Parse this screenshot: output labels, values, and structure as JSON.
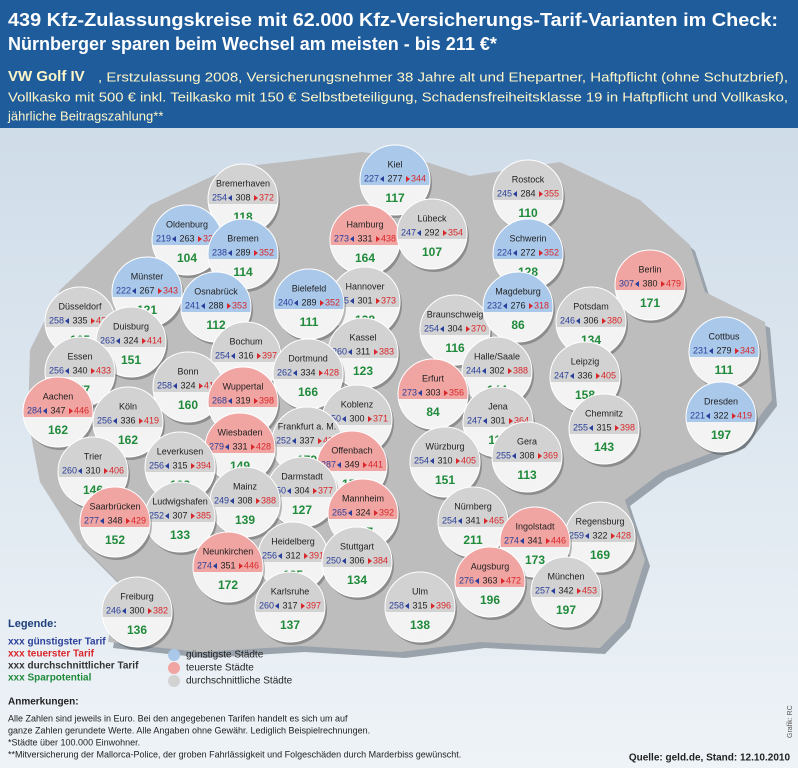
{
  "header": {
    "title_lines": [
      "439 Kfz-Zulassungskreise mit 62.000 Kfz-Versicherungs-Tarif-Varianten im Check:",
      "Nürnberger sparen beim Wechsel am meisten - bis 211 €*"
    ],
    "subtitle_lead": "VW Golf IV",
    "subtitle_lines": [
      ", Erstzulassung 2008, Versicherungsnehmer 38 Jahre alt und Ehepartner, Haftpflicht (ohne Schutzbrief),",
      "Vollkasko mit 500 € inkl. Teilkasko mit 150 € Selbstbeteiligung, Schadensfreiheitsklasse 19 in Haftpflicht und Vollkasko,",
      "jährliche Beitragszahlung**"
    ]
  },
  "cities": [
    {
      "name": "Kiel",
      "min": 227,
      "avg": 277,
      "max": 344,
      "saving": 117,
      "color": "#a9c8ea"
    },
    {
      "name": "Bremerhaven",
      "min": 254,
      "avg": 308,
      "max": 372,
      "saving": 118,
      "color": "#d2d2d2"
    },
    {
      "name": "Rostock",
      "min": 245,
      "avg": 284,
      "max": 355,
      "saving": 110,
      "color": "#d2d2d2"
    },
    {
      "name": "Oldenburg",
      "min": 219,
      "avg": 263,
      "max": 322,
      "saving": 104,
      "color": "#a9c8ea"
    },
    {
      "name": "Hamburg",
      "min": 273,
      "avg": 331,
      "max": 438,
      "saving": 164,
      "color": "#f0a5a2"
    },
    {
      "name": "Lübeck",
      "min": 247,
      "avg": 292,
      "max": 354,
      "saving": 107,
      "color": "#d2d2d2"
    },
    {
      "name": "Bremen",
      "min": 238,
      "avg": 289,
      "max": 352,
      "saving": 114,
      "color": "#a9c8ea"
    },
    {
      "name": "Schwerin",
      "min": 224,
      "avg": 272,
      "max": 352,
      "saving": 128,
      "color": "#a9c8ea"
    },
    {
      "name": "Münster",
      "min": 222,
      "avg": 267,
      "max": 343,
      "saving": 121,
      "color": "#a9c8ea"
    },
    {
      "name": "Hannover",
      "min": 245,
      "avg": 301,
      "max": 373,
      "saving": 128,
      "color": "#d2d2d2"
    },
    {
      "name": "Berlin",
      "min": 307,
      "avg": 380,
      "max": 479,
      "saving": 171,
      "color": "#f0a5a2"
    },
    {
      "name": "Osnabrück",
      "min": 241,
      "avg": 288,
      "max": 353,
      "saving": 112,
      "color": "#a9c8ea"
    },
    {
      "name": "Bielefeld",
      "min": 240,
      "avg": 289,
      "max": 352,
      "saving": 111,
      "color": "#a9c8ea"
    },
    {
      "name": "Düsseldorf",
      "min": 258,
      "avg": 335,
      "max": 423,
      "saving": 165,
      "color": "#d2d2d2"
    },
    {
      "name": "Braunschweig",
      "min": 254,
      "avg": 304,
      "max": 370,
      "saving": 116,
      "color": "#d2d2d2"
    },
    {
      "name": "Magdeburg",
      "min": 232,
      "avg": 276,
      "max": 318,
      "saving": 86,
      "color": "#a9c8ea"
    },
    {
      "name": "Potsdam",
      "min": 246,
      "avg": 306,
      "max": 380,
      "saving": 134,
      "color": "#d2d2d2"
    },
    {
      "name": "Duisburg",
      "min": 263,
      "avg": 324,
      "max": 414,
      "saving": 151,
      "color": "#d2d2d2"
    },
    {
      "name": "Cottbus",
      "min": 231,
      "avg": 279,
      "max": 343,
      "saving": 111,
      "color": "#a9c8ea"
    },
    {
      "name": "Bochum",
      "min": 254,
      "avg": 316,
      "max": 397,
      "saving": 143,
      "color": "#d2d2d2"
    },
    {
      "name": "Kassel",
      "min": 260,
      "avg": 311,
      "max": 383,
      "saving": 123,
      "color": "#d2d2d2"
    },
    {
      "name": "Dortmund",
      "min": 262,
      "avg": 334,
      "max": 428,
      "saving": 166,
      "color": "#d2d2d2"
    },
    {
      "name": "Essen",
      "min": 256,
      "avg": 340,
      "max": 433,
      "saving": 177,
      "color": "#d2d2d2"
    },
    {
      "name": "Bonn",
      "min": 258,
      "avg": 324,
      "max": 418,
      "saving": 160,
      "color": "#d2d2d2"
    },
    {
      "name": "Halle/Saale",
      "min": 244,
      "avg": 302,
      "max": 388,
      "saving": 144,
      "color": "#d2d2d2"
    },
    {
      "name": "Leipzig",
      "min": 247,
      "avg": 336,
      "max": 405,
      "saving": 158,
      "color": "#d2d2d2"
    },
    {
      "name": "Aachen",
      "min": 284,
      "avg": 347,
      "max": 446,
      "saving": 162,
      "color": "#f0a5a2"
    },
    {
      "name": "Wuppertal",
      "min": 268,
      "avg": 319,
      "max": 398,
      "saving": 130,
      "color": "#f0a5a2"
    },
    {
      "name": "Erfurt",
      "min": 273,
      "avg": 303,
      "max": 356,
      "saving": 84,
      "color": "#f0a5a2"
    },
    {
      "name": "Köln",
      "min": 256,
      "avg": 336,
      "max": 419,
      "saving": 162,
      "color": "#d2d2d2"
    },
    {
      "name": "Koblenz",
      "min": 250,
      "avg": 300,
      "max": 371,
      "saving": 120,
      "color": "#d2d2d2"
    },
    {
      "name": "Jena",
      "min": 247,
      "avg": 301,
      "max": 364,
      "saving": 117,
      "color": "#d2d2d2"
    },
    {
      "name": "Chemnitz",
      "min": 255,
      "avg": 315,
      "max": 398,
      "saving": 143,
      "color": "#d2d2d2"
    },
    {
      "name": "Dresden",
      "min": 221,
      "avg": 322,
      "max": 419,
      "saving": 197,
      "color": "#a9c8ea"
    },
    {
      "name": "Frankfurt a. M.",
      "min": 252,
      "avg": 337,
      "max": 431,
      "saving": 179,
      "color": "#d2d2d2"
    },
    {
      "name": "Wiesbaden",
      "min": 279,
      "avg": 331,
      "max": 428,
      "saving": 149,
      "color": "#f0a5a2"
    },
    {
      "name": "Trier",
      "min": 260,
      "avg": 310,
      "max": 406,
      "saving": 146,
      "color": "#d2d2d2"
    },
    {
      "name": "Leverkusen",
      "min": 256,
      "avg": 315,
      "max": 394,
      "saving": 138,
      "color": "#d2d2d2"
    },
    {
      "name": "Offenbach",
      "min": 287,
      "avg": 349,
      "max": 441,
      "saving": 155,
      "color": "#f0a5a2"
    },
    {
      "name": "Würzburg",
      "min": 254,
      "avg": 310,
      "max": 405,
      "saving": 151,
      "color": "#d2d2d2"
    },
    {
      "name": "Gera",
      "min": 255,
      "avg": 308,
      "max": 369,
      "saving": 113,
      "color": "#d2d2d2"
    },
    {
      "name": "Darmstadt",
      "min": 250,
      "avg": 304,
      "max": 377,
      "saving": 127,
      "color": "#d2d2d2"
    },
    {
      "name": "Mainz",
      "min": 249,
      "avg": 308,
      "max": 388,
      "saving": 139,
      "color": "#d2d2d2"
    },
    {
      "name": "Ludwigshafen",
      "min": 252,
      "avg": 307,
      "max": 385,
      "saving": 133,
      "color": "#d2d2d2"
    },
    {
      "name": "Saarbrücken",
      "min": 277,
      "avg": 348,
      "max": 429,
      "saving": 152,
      "color": "#f0a5a2"
    },
    {
      "name": "Mannheim",
      "min": 265,
      "avg": 324,
      "max": 392,
      "saving": 127,
      "color": "#f0a5a2"
    },
    {
      "name": "Nürnberg",
      "min": 254,
      "avg": 341,
      "max": 465,
      "saving": 211,
      "color": "#d2d2d2"
    },
    {
      "name": "Regensburg",
      "min": 259,
      "avg": 322,
      "max": 428,
      "saving": 169,
      "color": "#d2d2d2"
    },
    {
      "name": "Ingolstadt",
      "min": 274,
      "avg": 341,
      "max": 446,
      "saving": 173,
      "color": "#f0a5a2"
    },
    {
      "name": "Heidelberg",
      "min": 256,
      "avg": 312,
      "max": 391,
      "saving": 135,
      "color": "#d2d2d2"
    },
    {
      "name": "Stuttgart",
      "min": 250,
      "avg": 306,
      "max": 384,
      "saving": 134,
      "color": "#d2d2d2"
    },
    {
      "name": "Neunkirchen",
      "min": 274,
      "avg": 351,
      "max": 446,
      "saving": 172,
      "color": "#f0a5a2"
    },
    {
      "name": "Karlsruhe",
      "min": 260,
      "avg": 317,
      "max": 397,
      "saving": 137,
      "color": "#d2d2d2"
    },
    {
      "name": "Ulm",
      "min": 258,
      "avg": 315,
      "max": 396,
      "saving": 138,
      "color": "#d2d2d2"
    },
    {
      "name": "Augsburg",
      "min": 276,
      "avg": 363,
      "max": 472,
      "saving": 196,
      "color": "#f0a5a2"
    },
    {
      "name": "München",
      "min": 257,
      "avg": 342,
      "max": 453,
      "saving": 197,
      "color": "#d2d2d2"
    },
    {
      "name": "Freiburg",
      "min": 246,
      "avg": 300,
      "max": 382,
      "saving": 136,
      "color": "#d2d2d2"
    }
  ],
  "legend": {
    "title": "Legende:",
    "value_items": [
      {
        "label": "xxx günstigster Tarif",
        "color": "#2a3f9a"
      },
      {
        "label": "xxx teuerster Tarif",
        "color": "#d9262a"
      },
      {
        "label": "xxx durchschnittlicher Tarif",
        "color": "#333333"
      },
      {
        "label": "xxx Sparpotential",
        "color": "#1f8a3a"
      }
    ],
    "circle_items": [
      {
        "label": "günstigste Städte",
        "color": "#a9c8ea"
      },
      {
        "label": "teuerste Städte",
        "color": "#f0a5a2"
      },
      {
        "label": "durchschnittliche Städte",
        "color": "#d2d2d2"
      }
    ]
  },
  "notes": {
    "title": "Anmerkungen:",
    "lines": [
      "Alle Zahlen sind jeweils in Euro. Bei den angegebenen Tarifen handelt es sich um auf",
      "ganze Zahlen gerundete Werte. Alle Angaben ohne Gewähr. Lediglich Beispielrechnungen.",
      "*Städte über 100.000 Einwohner.",
      "**Mitversicherung der Mallorca-Police, der groben Fahrlässigkeit und Folgeschäden durch Marderbiss gewünscht."
    ]
  },
  "source": "Quelle: geld.de, Stand: 12.10.2010",
  "credit": "Grafik: RC"
}
